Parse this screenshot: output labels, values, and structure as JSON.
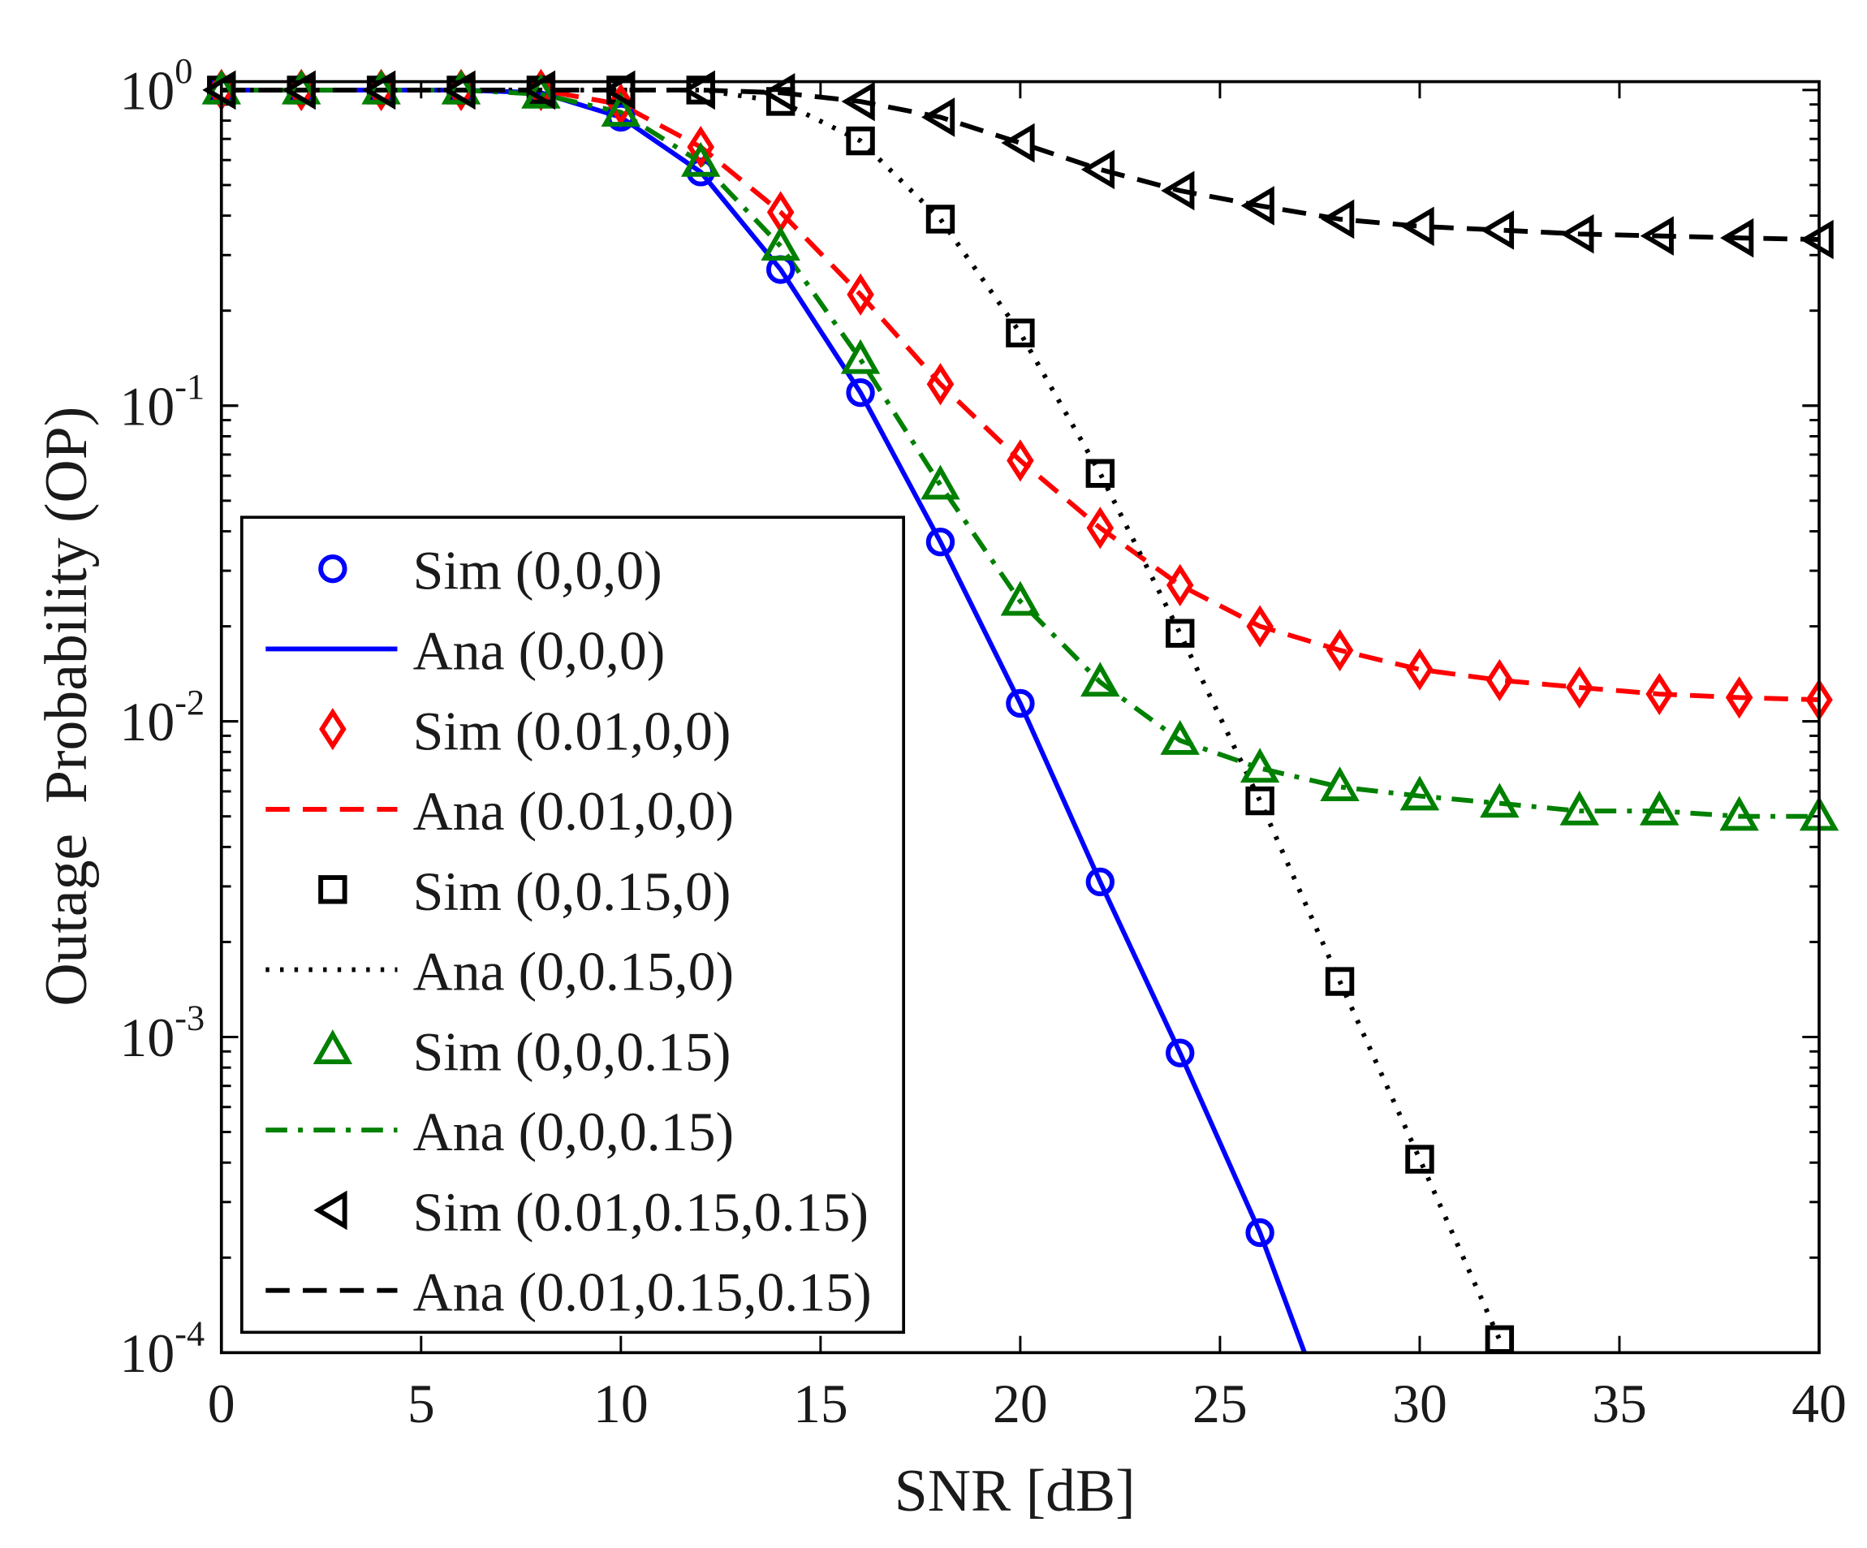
{
  "chart_data": {
    "type": "line",
    "title": "",
    "xlabel": "SNR [dB]",
    "ylabel": "Outage  Probability (OP)",
    "xlim": [
      0,
      40
    ],
    "ylim": [
      0.0001,
      1
    ],
    "yscale": "log",
    "x_ticks": [
      "0",
      "5",
      "10",
      "15",
      "20",
      "25",
      "30",
      "35",
      "40"
    ],
    "y_ticks": [
      {
        "base": "10",
        "exp": "0"
      },
      {
        "base": "10",
        "exp": "-1"
      },
      {
        "base": "10",
        "exp": "-2"
      },
      {
        "base": "10",
        "exp": "-3"
      },
      {
        "base": "10",
        "exp": "-4"
      }
    ],
    "legend_position": "bottom-left",
    "series": [
      {
        "name": "Sim (0,0,0)",
        "kind": "marker",
        "marker": "circle",
        "color": "#0000ff",
        "x": [
          0,
          2,
          4,
          6,
          8,
          10,
          12,
          14,
          16,
          18,
          20,
          22,
          24,
          26
        ],
        "y": [
          1,
          1,
          1,
          1,
          0.98,
          0.82,
          0.55,
          0.27,
          0.11,
          0.037,
          0.0114,
          0.0031,
          0.00089,
          0.00024
        ]
      },
      {
        "name": "Ana (0,0,0)",
        "kind": "line",
        "dash": "solid",
        "color": "#0000ff",
        "x": [
          0,
          2,
          4,
          6,
          8,
          10,
          12,
          14,
          16,
          18,
          20,
          22,
          24,
          26,
          28
        ],
        "y": [
          1,
          1,
          1,
          1,
          0.98,
          0.82,
          0.55,
          0.27,
          0.11,
          0.037,
          0.0114,
          0.0031,
          0.00089,
          0.00024,
          5e-05
        ]
      },
      {
        "name": "Sim (0.01,0,0)",
        "kind": "marker",
        "marker": "diamond",
        "color": "#ff0000",
        "x": [
          0,
          2,
          4,
          6,
          8,
          10,
          12,
          14,
          16,
          18,
          20,
          22,
          24,
          26,
          28,
          30,
          32,
          34,
          36,
          38,
          40
        ],
        "y": [
          1,
          1,
          1,
          1,
          1,
          0.9,
          0.66,
          0.41,
          0.225,
          0.117,
          0.067,
          0.041,
          0.027,
          0.02,
          0.0168,
          0.0146,
          0.0135,
          0.0128,
          0.0122,
          0.0119,
          0.0117
        ]
      },
      {
        "name": "Ana (0.01,0,0)",
        "kind": "line",
        "dash": "dashed",
        "color": "#ff0000",
        "x": [
          0,
          2,
          4,
          6,
          8,
          10,
          12,
          14,
          16,
          18,
          20,
          22,
          24,
          26,
          28,
          30,
          32,
          34,
          36,
          38,
          40
        ],
        "y": [
          1,
          1,
          1,
          1,
          1,
          0.9,
          0.66,
          0.41,
          0.225,
          0.117,
          0.067,
          0.041,
          0.027,
          0.02,
          0.0168,
          0.0146,
          0.0135,
          0.0128,
          0.0122,
          0.0119,
          0.0117
        ]
      },
      {
        "name": "Sim (0,0.15,0)",
        "kind": "marker",
        "marker": "square",
        "color": "#000000",
        "x": [
          0,
          2,
          4,
          6,
          8,
          10,
          12,
          14,
          16,
          18,
          20,
          22,
          24,
          26,
          28,
          30,
          32
        ],
        "y": [
          1,
          1,
          1,
          1,
          1,
          1,
          1,
          0.92,
          0.69,
          0.39,
          0.17,
          0.061,
          0.019,
          0.0056,
          0.0015,
          0.00041,
          0.00011
        ]
      },
      {
        "name": "Ana (0,0.15,0)",
        "kind": "line",
        "dash": "dotted",
        "color": "#000000",
        "x": [
          0,
          2,
          4,
          6,
          8,
          10,
          12,
          14,
          16,
          18,
          20,
          22,
          24,
          26,
          28,
          30,
          32
        ],
        "y": [
          1,
          1,
          1,
          1,
          1,
          1,
          1,
          0.92,
          0.69,
          0.39,
          0.17,
          0.061,
          0.019,
          0.0056,
          0.0015,
          0.00041,
          0.00011
        ]
      },
      {
        "name": "Sim (0,0,0.15)",
        "kind": "marker",
        "marker": "triangle-up",
        "color": "#008000",
        "x": [
          0,
          2,
          4,
          6,
          8,
          10,
          12,
          14,
          16,
          18,
          20,
          22,
          24,
          26,
          28,
          30,
          32,
          34,
          36,
          38,
          40
        ],
        "y": [
          1,
          1,
          1,
          1,
          0.97,
          0.85,
          0.59,
          0.32,
          0.14,
          0.056,
          0.024,
          0.0133,
          0.0087,
          0.0071,
          0.0062,
          0.0058,
          0.0055,
          0.0052,
          0.0052,
          0.005,
          0.005
        ]
      },
      {
        "name": "Ana (0,0,0.15)",
        "kind": "line",
        "dash": "dashdot",
        "color": "#008000",
        "x": [
          0,
          2,
          4,
          6,
          8,
          10,
          12,
          14,
          16,
          18,
          20,
          22,
          24,
          26,
          28,
          30,
          32,
          34,
          36,
          38,
          40
        ],
        "y": [
          1,
          1,
          1,
          1,
          0.97,
          0.85,
          0.59,
          0.32,
          0.14,
          0.056,
          0.024,
          0.0133,
          0.0087,
          0.0071,
          0.0062,
          0.0058,
          0.0055,
          0.0052,
          0.0052,
          0.005,
          0.005
        ]
      },
      {
        "name": "Sim (0.01,0.15,0.15)",
        "kind": "marker",
        "marker": "triangle-left",
        "color": "#000000",
        "x": [
          0,
          2,
          4,
          6,
          8,
          10,
          12,
          14,
          16,
          18,
          20,
          22,
          24,
          26,
          28,
          30,
          32,
          34,
          36,
          38,
          40
        ],
        "y": [
          1,
          1,
          1,
          1,
          1,
          1,
          1,
          0.98,
          0.92,
          0.82,
          0.68,
          0.56,
          0.48,
          0.43,
          0.39,
          0.37,
          0.36,
          0.35,
          0.345,
          0.34,
          0.336
        ]
      },
      {
        "name": "Ana (0.01,0.15,0.15)",
        "kind": "line",
        "dash": "dashed",
        "color": "#000000",
        "x": [
          0,
          2,
          4,
          6,
          8,
          10,
          12,
          14,
          16,
          18,
          20,
          22,
          24,
          26,
          28,
          30,
          32,
          34,
          36,
          38,
          40
        ],
        "y": [
          1,
          1,
          1,
          1,
          1,
          1,
          1,
          0.98,
          0.92,
          0.82,
          0.68,
          0.56,
          0.48,
          0.43,
          0.39,
          0.37,
          0.36,
          0.35,
          0.345,
          0.34,
          0.336
        ]
      }
    ]
  }
}
